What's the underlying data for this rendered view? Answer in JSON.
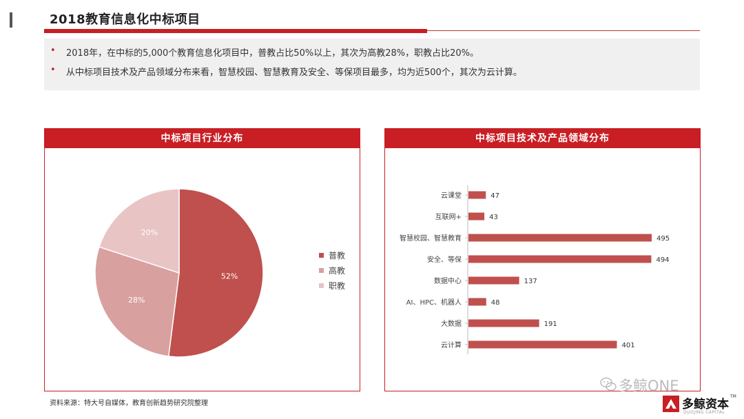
{
  "page": {
    "title": "2018教育信息化中标项目"
  },
  "summary": {
    "bullets": [
      "2018年，在中标的5,000个教育信息化项目中，普教占比50%以上，其次为高教28%，职教占比20%。",
      "从中标项目技术及产品领域分布来看，智慧校园、智慧教育及安全、等保项目最多，均为近500个，其次为云计算。"
    ],
    "bullet_symbol": "•"
  },
  "colors": {
    "accent": "#c81e24",
    "pie": [
      "#c0504d",
      "#d9a0a0",
      "#e8c4c4"
    ],
    "bar": "#c0504d"
  },
  "chart_data": [
    {
      "type": "pie",
      "title": "中标项目行业分布",
      "categories": [
        "普教",
        "高教",
        "职教"
      ],
      "values": [
        52,
        28,
        20
      ],
      "labels": [
        "52%",
        "28%",
        "20%"
      ],
      "legend": "right"
    },
    {
      "type": "bar",
      "orientation": "horizontal",
      "title": "中标项目技术及产品领域分布",
      "categories": [
        "云课堂",
        "互联网+",
        "智慧校园、智慧教育",
        "安全、等保",
        "数据中心",
        "AI、HPC、机器人",
        "大数据",
        "云计算"
      ],
      "values": [
        47,
        43,
        495,
        494,
        137,
        48,
        191,
        401
      ],
      "xlim": [
        0,
        495
      ]
    }
  ],
  "footer": {
    "source": "资料来源：特大号自媒体，教育创新趋势研究院整理",
    "watermark": "多鲸ONE",
    "brand": "多鲸资本",
    "brand_sub": "DUOJING CAPITAL",
    "brand_tm": "TM"
  }
}
